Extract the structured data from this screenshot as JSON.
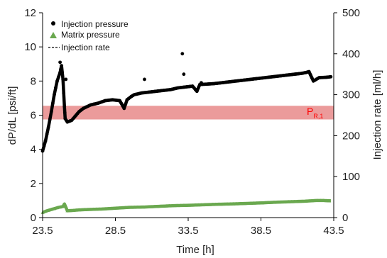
{
  "chart_data": {
    "type": "scatter",
    "title": "",
    "xlabel": "Time [h]",
    "ylabel": "dP/dL [psi/ft]",
    "y2label": "Injection rate [ml/h]",
    "xlim": [
      23.5,
      43.5
    ],
    "ylim": [
      0,
      12
    ],
    "y2lim": [
      0,
      500
    ],
    "x_ticks": [
      "23.5",
      "28.5",
      "33.5",
      "38.5",
      "43.5"
    ],
    "y_ticks": [
      "0",
      "2",
      "4",
      "6",
      "8",
      "10",
      "12"
    ],
    "y2_ticks": [
      "0",
      "100",
      "200",
      "300",
      "400",
      "500"
    ],
    "grid": false,
    "legend_position": "top-left",
    "legend": [
      {
        "label": "Injection pressure",
        "marker": "circle",
        "color": "#000000"
      },
      {
        "label": "Matrix pressure",
        "marker": "triangle",
        "color": "#6aa84f"
      },
      {
        "label": "Injection rate",
        "marker": "dashed-line",
        "color": "#000000"
      }
    ],
    "band": {
      "label_main": "P",
      "label_sub": "R,1",
      "y_range": [
        5.75,
        6.55
      ],
      "color": "#e06666",
      "label_color": "#ff0000"
    },
    "series": [
      {
        "name": "Injection pressure",
        "color": "#000000",
        "x": [
          23.5,
          23.7,
          23.9,
          24.1,
          24.3,
          24.5,
          24.7,
          24.8,
          24.9,
          25.0,
          25.05,
          25.2,
          25.5,
          26.0,
          26.3,
          26.8,
          27.3,
          27.8,
          28.3,
          28.8,
          29.1,
          29.3,
          29.6,
          29.8,
          30.3,
          30.8,
          31.3,
          31.8,
          32.3,
          32.8,
          33.3,
          33.8,
          34.1,
          34.3,
          34.8,
          35.3,
          35.8,
          36.3,
          36.8,
          37.3,
          37.8,
          38.3,
          38.8,
          39.3,
          39.8,
          40.3,
          40.8,
          41.3,
          41.6,
          41.8,
          42.1,
          42.5,
          43.0,
          43.3
        ],
        "y": [
          3.9,
          4.5,
          5.3,
          6.2,
          7.2,
          8.0,
          8.5,
          8.9,
          8.1,
          6.5,
          5.8,
          5.6,
          5.7,
          6.2,
          6.4,
          6.6,
          6.7,
          6.85,
          6.9,
          6.85,
          6.4,
          6.9,
          7.1,
          7.2,
          7.3,
          7.35,
          7.4,
          7.45,
          7.5,
          7.6,
          7.65,
          7.7,
          7.4,
          7.8,
          7.82,
          7.85,
          7.9,
          7.95,
          8.0,
          8.05,
          8.1,
          8.15,
          8.2,
          8.25,
          8.3,
          8.35,
          8.4,
          8.45,
          8.5,
          8.55,
          8.0,
          8.2,
          8.22,
          8.25
        ]
      },
      {
        "name": "Injection pressure outliers",
        "color": "#000000",
        "x": [
          24.7,
          24.8,
          25.1,
          30.5,
          33.1,
          33.2,
          34.4
        ],
        "y": [
          9.1,
          8.6,
          8.1,
          8.1,
          9.6,
          8.4,
          7.9
        ]
      },
      {
        "name": "Matrix pressure",
        "color": "#6aa84f",
        "x": [
          23.5,
          23.8,
          24.2,
          24.6,
          24.9,
          25.0,
          25.2,
          25.6,
          26.0,
          26.8,
          27.5,
          28.5,
          29.5,
          30.5,
          31.5,
          32.5,
          33.5,
          34.5,
          35.5,
          36.5,
          37.5,
          38.5,
          39.5,
          40.5,
          41.5,
          42.3,
          42.8,
          43.3
        ],
        "y": [
          0.3,
          0.4,
          0.5,
          0.6,
          0.65,
          0.8,
          0.4,
          0.42,
          0.45,
          0.48,
          0.5,
          0.55,
          0.6,
          0.62,
          0.66,
          0.7,
          0.72,
          0.75,
          0.78,
          0.8,
          0.83,
          0.86,
          0.9,
          0.93,
          0.96,
          1.0,
          1.0,
          0.98
        ]
      }
    ]
  }
}
